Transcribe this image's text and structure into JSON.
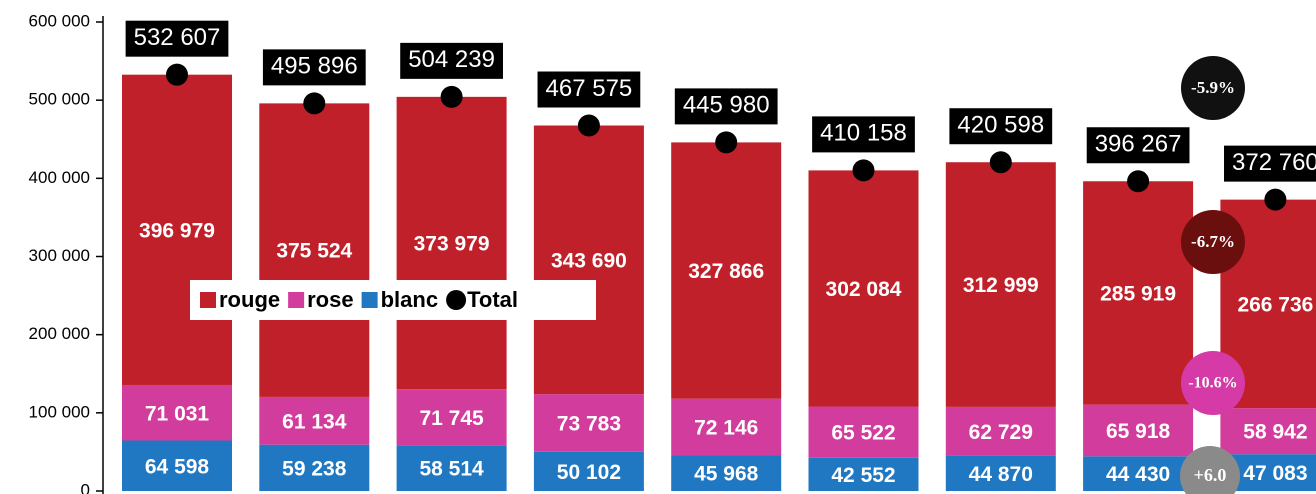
{
  "chart_data": {
    "type": "bar",
    "stacked": true,
    "categories": [
      null,
      null,
      null,
      null,
      null,
      null,
      null,
      null,
      null
    ],
    "series": [
      {
        "name": "blanc",
        "color": "#1f78c1",
        "values": [
          64598,
          59238,
          58514,
          50102,
          45968,
          42552,
          44870,
          44430,
          47083
        ],
        "value_labels": [
          "64 598",
          "59 238",
          "58 514",
          "50 102",
          "45 968",
          "42 552",
          "44 870",
          "44 430",
          "47 083"
        ]
      },
      {
        "name": "rose",
        "color": "#d23c9c",
        "values": [
          71031,
          61134,
          71745,
          73783,
          72146,
          65522,
          62729,
          65918,
          58942
        ],
        "value_labels": [
          "71 031",
          "61 134",
          "71 745",
          "73 783",
          "72 146",
          "65 522",
          "62 729",
          "65 918",
          "58 942"
        ]
      },
      {
        "name": "rouge",
        "color": "#c0202a",
        "values": [
          396979,
          375524,
          373979,
          343690,
          327866,
          302084,
          312999,
          285919,
          266736
        ],
        "value_labels": [
          "396 979",
          "375 524",
          "373 979",
          "343 690",
          "327 866",
          "302 084",
          "312 999",
          "285 919",
          "266 736"
        ]
      },
      {
        "name": "Total",
        "color": "#000000",
        "values": [
          532607,
          495896,
          504239,
          467575,
          445980,
          410158,
          420598,
          396267,
          372760
        ],
        "value_labels": [
          "532 607",
          "495 896",
          "504 239",
          "467 575",
          "445 980",
          "410 158",
          "420 598",
          "396 267",
          "372 760"
        ]
      }
    ],
    "ylim": [
      0,
      600000
    ],
    "yticks": [
      {
        "value": 0,
        "label": "0"
      },
      {
        "value": 100000,
        "label": "100 000"
      },
      {
        "value": 200000,
        "label": "200 000"
      },
      {
        "value": 300000,
        "label": "300 000"
      },
      {
        "value": 400000,
        "label": "400 000"
      },
      {
        "value": 500000,
        "label": "500 000"
      },
      {
        "value": 600000,
        "label": "600 000"
      }
    ],
    "legend": "center",
    "annotations": [
      {
        "text": "-5.9%",
        "color": "#111111"
      },
      {
        "text": "-6.7%",
        "color": "#6b0e0e"
      },
      {
        "text": "-10.6%",
        "color": "#d63aa6"
      },
      {
        "text": "+6.0",
        "color": "#8a8a8a"
      }
    ]
  }
}
